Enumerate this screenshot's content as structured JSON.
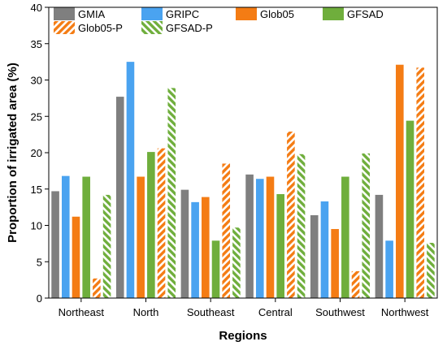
{
  "chart_data": {
    "type": "bar",
    "xlabel": "Regions",
    "ylabel": "Proportion of irrigated area (%)",
    "ylim": [
      0,
      40
    ],
    "yticks": [
      0,
      5,
      10,
      15,
      20,
      25,
      30,
      35,
      40
    ],
    "categories": [
      "Northeast",
      "North",
      "Southeast",
      "Central",
      "Southwest",
      "Northwest"
    ],
    "legend_position": "top-left",
    "grid": false,
    "series": [
      {
        "name": "GMIA",
        "color": "#7f7f7f",
        "pattern": "solid",
        "values": [
          14.7,
          27.7,
          14.9,
          17.0,
          11.4,
          14.2
        ]
      },
      {
        "name": "GRIPC",
        "color": "#4aa3f0",
        "pattern": "solid",
        "values": [
          16.8,
          32.5,
          13.2,
          16.4,
          13.3,
          7.9
        ]
      },
      {
        "name": "Glob05",
        "color": "#f47c14",
        "pattern": "solid",
        "values": [
          11.2,
          16.7,
          13.9,
          16.7,
          9.5,
          32.1
        ]
      },
      {
        "name": "GFSAD",
        "color": "#6fae3c",
        "pattern": "solid",
        "values": [
          16.7,
          20.1,
          7.9,
          14.3,
          16.7,
          24.4
        ]
      },
      {
        "name": "Glob05-P",
        "color": "#f47c14",
        "pattern": "hatch",
        "values": [
          2.7,
          20.6,
          18.5,
          22.9,
          3.7,
          31.7
        ]
      },
      {
        "name": "GFSAD-P",
        "color": "#6fae3c",
        "pattern": "hatch",
        "values": [
          14.2,
          28.9,
          9.7,
          19.8,
          19.9,
          7.6
        ]
      }
    ]
  }
}
